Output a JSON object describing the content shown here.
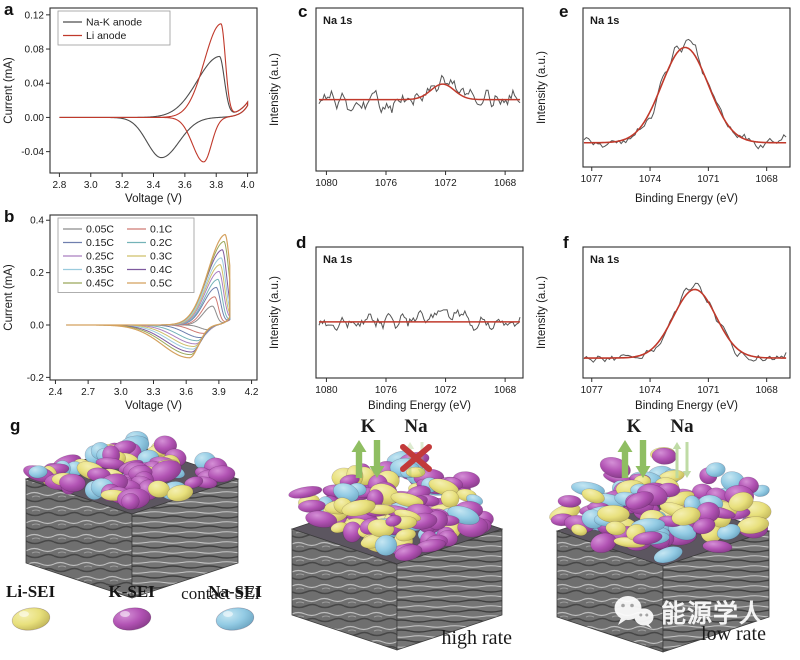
{
  "colors": {
    "raw_trace": "#4d4d4d",
    "fit_line": "#c0392b",
    "axis": "#2e2e2e"
  },
  "chart_data": [
    {
      "name": "cv-comparison-chart",
      "letter": "a",
      "type": "line",
      "xlabel": "Voltage (V)",
      "ylabel": "Current (mA)",
      "xlim": [
        2.74,
        4.06
      ],
      "ylim": [
        -0.065,
        0.128
      ],
      "xticks": [
        {
          "v": 2.8,
          "label": "2.8"
        },
        {
          "v": 3.0,
          "label": "3.0"
        },
        {
          "v": 3.2,
          "label": "3.2"
        },
        {
          "v": 3.4,
          "label": "3.4"
        },
        {
          "v": 3.6,
          "label": "3.6"
        },
        {
          "v": 3.8,
          "label": "3.8"
        },
        {
          "v": 4.0,
          "label": "4.0"
        }
      ],
      "yticks": [
        {
          "v": -0.04,
          "label": "-0.04"
        },
        {
          "v": 0,
          "label": "0.00"
        },
        {
          "v": 0.04,
          "label": "0.04"
        },
        {
          "v": 0.08,
          "label": "0.08"
        },
        {
          "v": 0.12,
          "label": "0.12"
        }
      ],
      "legend": {
        "cols": 1,
        "position": "top-left"
      },
      "series": [
        {
          "name": "Na-K anode",
          "color": "#4d4d4d",
          "width": 1.1,
          "summary": {
            "anodic_peak_V": 3.82,
            "anodic_peak_mA": 0.07,
            "cathodic_peak_V": 3.45,
            "cathodic_peak_mA": -0.047
          },
          "gen": {
            "kind": "cv",
            "vmin": 2.8,
            "vmax": 4.0,
            "vpa": 3.82,
            "apa": 0.07,
            "wl": 0.2,
            "wr": 0.045,
            "tail": 0.018,
            "vpc": 3.45,
            "apc": 0.047,
            "wcl": 0.13,
            "wcr": 0.16,
            "rtail": 0.014
          }
        },
        {
          "name": "Li anode",
          "color": "#c0392b",
          "width": 1.1,
          "summary": {
            "anodic_peak_V": 3.83,
            "anodic_peak_mA": 0.108,
            "cathodic_peak_V": 3.72,
            "cathodic_peak_mA": -0.052
          },
          "gen": {
            "kind": "cv",
            "vmin": 2.8,
            "vmax": 4.0,
            "vpa": 3.83,
            "apa": 0.108,
            "wl": 0.15,
            "wr": 0.04,
            "tail": 0.018,
            "vpc": 3.72,
            "apc": 0.052,
            "wcl": 0.1,
            "wcr": 0.07,
            "rtail": 0.014
          }
        }
      ]
    },
    {
      "name": "cv-rates-chart",
      "letter": "b",
      "type": "line",
      "xlabel": "Voltage (V)",
      "ylabel": "Current (mA)",
      "xlim": [
        2.35,
        4.25
      ],
      "ylim": [
        -0.21,
        0.42
      ],
      "xticks": [
        {
          "v": 2.4,
          "label": "2.4"
        },
        {
          "v": 2.7,
          "label": "2.7"
        },
        {
          "v": 3.0,
          "label": "3.0"
        },
        {
          "v": 3.3,
          "label": "3.3"
        },
        {
          "v": 3.6,
          "label": "3.6"
        },
        {
          "v": 3.9,
          "label": "3.9"
        },
        {
          "v": 4.2,
          "label": "4.2"
        }
      ],
      "yticks": [
        {
          "v": -0.2,
          "label": "-0.2"
        },
        {
          "v": 0,
          "label": "0.0"
        },
        {
          "v": 0.2,
          "label": "0.2"
        },
        {
          "v": 0.4,
          "label": "0.4"
        }
      ],
      "legend": {
        "cols": 2,
        "position": "top-left"
      },
      "series": [
        {
          "name": "0.05C",
          "color": "#8c8c8c",
          "width": 1,
          "gen": {
            "kind": "cv",
            "vmin": 2.5,
            "vmax": 4.0,
            "vpa": 3.84,
            "apa": 0.07,
            "wl": 0.12,
            "wr": 0.05,
            "tail": 0.02,
            "vpc": 3.8,
            "apc": 0.018,
            "wcl": 0.1,
            "wcr": 0.06,
            "rtail": 0.03
          }
        },
        {
          "name": "0.1C",
          "color": "#cf7b74",
          "width": 1,
          "gen": {
            "kind": "cv",
            "vmin": 2.5,
            "vmax": 4.0,
            "vpa": 3.86,
            "apa": 0.105,
            "wl": 0.14,
            "wr": 0.05,
            "tail": 0.02,
            "vpc": 3.76,
            "apc": 0.032,
            "wcl": 0.16,
            "wcr": 0.08,
            "rtail": 0.03
          }
        },
        {
          "name": "0.15C",
          "color": "#6f7fae",
          "width": 1,
          "gen": {
            "kind": "cv",
            "vmin": 2.5,
            "vmax": 4.0,
            "vpa": 3.875,
            "apa": 0.14,
            "wl": 0.16,
            "wr": 0.055,
            "tail": 0.02,
            "vpc": 3.73,
            "apc": 0.048,
            "wcl": 0.2,
            "wcr": 0.09,
            "rtail": 0.03
          }
        },
        {
          "name": "0.2C",
          "color": "#74b3b8",
          "width": 1,
          "gen": {
            "kind": "cv",
            "vmin": 2.5,
            "vmax": 4.0,
            "vpa": 3.89,
            "apa": 0.17,
            "wl": 0.17,
            "wr": 0.055,
            "tail": 0.02,
            "vpc": 3.7,
            "apc": 0.06,
            "wcl": 0.24,
            "wcr": 0.1,
            "rtail": 0.03
          }
        },
        {
          "name": "0.25C",
          "color": "#ab7fc0",
          "width": 1,
          "gen": {
            "kind": "cv",
            "vmin": 2.5,
            "vmax": 4.0,
            "vpa": 3.9,
            "apa": 0.2,
            "wl": 0.18,
            "wr": 0.06,
            "tail": 0.02,
            "vpc": 3.685,
            "apc": 0.072,
            "wcl": 0.27,
            "wcr": 0.11,
            "rtail": 0.03
          }
        },
        {
          "name": "0.3C",
          "color": "#cfc06a",
          "width": 1,
          "gen": {
            "kind": "cv",
            "vmin": 2.5,
            "vmax": 4.0,
            "vpa": 3.91,
            "apa": 0.225,
            "wl": 0.19,
            "wr": 0.06,
            "tail": 0.02,
            "vpc": 3.67,
            "apc": 0.082,
            "wcl": 0.29,
            "wcr": 0.11,
            "rtail": 0.03
          }
        },
        {
          "name": "0.35C",
          "color": "#9acbdd",
          "width": 1,
          "gen": {
            "kind": "cv",
            "vmin": 2.5,
            "vmax": 4.0,
            "vpa": 3.92,
            "apa": 0.25,
            "wl": 0.2,
            "wr": 0.06,
            "tail": 0.02,
            "vpc": 3.66,
            "apc": 0.092,
            "wcl": 0.31,
            "wcr": 0.12,
            "rtail": 0.03
          }
        },
        {
          "name": "0.4C",
          "color": "#7e5a9e",
          "width": 1,
          "gen": {
            "kind": "cv",
            "vmin": 2.5,
            "vmax": 4.0,
            "vpa": 3.93,
            "apa": 0.28,
            "wl": 0.21,
            "wr": 0.06,
            "tail": 0.02,
            "vpc": 3.65,
            "apc": 0.103,
            "wcl": 0.33,
            "wcr": 0.12,
            "rtail": 0.03
          }
        },
        {
          "name": "0.45C",
          "color": "#9aa85a",
          "width": 1,
          "gen": {
            "kind": "cv",
            "vmin": 2.5,
            "vmax": 4.0,
            "vpa": 3.945,
            "apa": 0.31,
            "wl": 0.215,
            "wr": 0.065,
            "tail": 0.02,
            "vpc": 3.64,
            "apc": 0.113,
            "wcl": 0.34,
            "wcr": 0.12,
            "rtail": 0.03
          }
        },
        {
          "name": "0.5C",
          "color": "#d4a15e",
          "width": 1.2,
          "gen": {
            "kind": "cv",
            "vmin": 2.5,
            "vmax": 4.0,
            "vpa": 3.955,
            "apa": 0.335,
            "wl": 0.22,
            "wr": 0.065,
            "tail": 0.02,
            "vpc": 3.63,
            "apc": 0.125,
            "wcl": 0.35,
            "wcr": 0.12,
            "rtail": 0.03
          }
        }
      ]
    },
    {
      "name": "xps-na1s-chart-c",
      "letter": "c",
      "type": "line",
      "inner_label": "Na 1s",
      "xlabel": "",
      "ylabel": "Intensity (a.u.)",
      "xlim": [
        1080.7,
        1066.8
      ],
      "ylim": [
        0,
        1.05
      ],
      "peak_center_eV": 1072,
      "xticks": [
        {
          "v": 1080,
          "label": "1080"
        },
        {
          "v": 1076,
          "label": "1076"
        },
        {
          "v": 1072,
          "label": "1072"
        },
        {
          "v": 1068,
          "label": "1068"
        }
      ],
      "yticks": [],
      "series": [
        {
          "name": "raw",
          "color": "#555555",
          "width": 1,
          "gen": {
            "kind": "xps",
            "x0": 1080.5,
            "x1": 1067.0,
            "baseline": 0.46,
            "height": 0.15,
            "center": 1072.1,
            "sigma": 0.9,
            "noise": 0.11,
            "seed": 101
          }
        },
        {
          "name": "fit",
          "color": "#c0392b",
          "width": 1.5,
          "gen": {
            "kind": "xps",
            "x0": 1080.5,
            "x1": 1067.0,
            "baseline": 0.46,
            "height": 0.1,
            "center": 1072.2,
            "sigma": 1.1,
            "noise": 0,
            "seed": 1
          }
        }
      ]
    },
    {
      "name": "xps-na1s-chart-d",
      "letter": "d",
      "type": "line",
      "inner_label": "Na 1s",
      "xlabel": "Binding Energy (eV)",
      "ylabel": "Intensity (a.u.)",
      "xlim": [
        1080.7,
        1066.8
      ],
      "ylim": [
        0,
        1.05
      ],
      "peak_center_eV": null,
      "xticks": [
        {
          "v": 1080,
          "label": "1080"
        },
        {
          "v": 1076,
          "label": "1076"
        },
        {
          "v": 1072,
          "label": "1072"
        },
        {
          "v": 1068,
          "label": "1068"
        }
      ],
      "yticks": [],
      "series": [
        {
          "name": "raw",
          "color": "#555555",
          "width": 1,
          "gen": {
            "kind": "xps",
            "x0": 1080.5,
            "x1": 1067.0,
            "baseline": 0.45,
            "height": 0.04,
            "center": 1071.8,
            "sigma": 1.2,
            "noise": 0.11,
            "seed": 202
          }
        },
        {
          "name": "fit",
          "color": "#c0392b",
          "width": 1.5,
          "gen": {
            "kind": "xps",
            "x0": 1080.5,
            "x1": 1067.0,
            "baseline": 0.45,
            "height": 0,
            "center": 1072,
            "sigma": 1,
            "noise": 0,
            "seed": 1
          }
        }
      ]
    },
    {
      "name": "xps-na1s-chart-e",
      "letter": "e",
      "type": "line",
      "inner_label": "Na 1s",
      "xlabel": "Binding Energy (eV)",
      "ylabel": "Intensity (a.u.)",
      "xlim": [
        1077.45,
        1066.8
      ],
      "ylim": [
        0,
        1.05
      ],
      "peak_center_eV": 1072.2,
      "xticks": [
        {
          "v": 1077,
          "label": "1077"
        },
        {
          "v": 1074,
          "label": "1074"
        },
        {
          "v": 1071,
          "label": "1071"
        },
        {
          "v": 1068,
          "label": "1068"
        }
      ],
      "yticks": [],
      "series": [
        {
          "name": "raw",
          "color": "#555555",
          "width": 1,
          "gen": {
            "kind": "xps",
            "x0": 1077.4,
            "x1": 1067.0,
            "baseline": 0.16,
            "height": 0.66,
            "center": 1072.2,
            "sigma": 1.6,
            "noise": 0.07,
            "seed": 303
          }
        },
        {
          "name": "fit",
          "color": "#c0392b",
          "width": 1.6,
          "gen": {
            "kind": "xps",
            "x0": 1077.4,
            "x1": 1067.0,
            "baseline": 0.16,
            "height": 0.63,
            "center": 1072.2,
            "sigma": 1.7,
            "noise": 0,
            "seed": 1
          }
        }
      ]
    },
    {
      "name": "xps-na1s-chart-f",
      "letter": "f",
      "type": "line",
      "inner_label": "Na 1s",
      "xlabel": "Binding Energy (eV)",
      "ylabel": "Intensity (a.u.)",
      "xlim": [
        1077.45,
        1066.8
      ],
      "ylim": [
        0,
        1.05
      ],
      "peak_center_eV": 1071.7,
      "xticks": [
        {
          "v": 1077,
          "label": "1077"
        },
        {
          "v": 1074,
          "label": "1074"
        },
        {
          "v": 1071,
          "label": "1071"
        },
        {
          "v": 1068,
          "label": "1068"
        }
      ],
      "yticks": [],
      "series": [
        {
          "name": "raw",
          "color": "#555555",
          "width": 1,
          "gen": {
            "kind": "xps",
            "x0": 1077.4,
            "x1": 1067.0,
            "baseline": 0.16,
            "height": 0.57,
            "center": 1071.7,
            "sigma": 1.45,
            "noise": 0.07,
            "seed": 404
          }
        },
        {
          "name": "fit",
          "color": "#c0392b",
          "width": 1.6,
          "gen": {
            "kind": "xps",
            "x0": 1077.4,
            "x1": 1067.0,
            "baseline": 0.16,
            "height": 0.55,
            "center": 1071.7,
            "sigma": 1.55,
            "noise": 0,
            "seed": 1
          }
        }
      ]
    }
  ],
  "panel_g": {
    "letter": "g",
    "arrow_labels": {
      "k": "K",
      "na": "Na"
    },
    "arrow_color": "#8fbe62",
    "blocked_color": "#c23a3a",
    "box_color": "#757575",
    "blob_colors": {
      "purple": "#b253b4",
      "yellow": "#e8e07c",
      "blue": "#93cbe4"
    },
    "diagrams": [
      {
        "caption": "contact SEI",
        "k_arrows": "none",
        "na_arrows": "none",
        "blob_mix": [
          0.5,
          0.25,
          0.25
        ],
        "thickness": 13,
        "count": 75,
        "seed": 11
      },
      {
        "caption": "high rate",
        "k_arrows": "solid",
        "na_arrows": "blocked",
        "blob_mix": [
          0.5,
          0.33,
          0.17
        ],
        "thickness": 42,
        "count": 135,
        "seed": 23
      },
      {
        "caption": "low rate",
        "k_arrows": "solid",
        "na_arrows": "hollow",
        "blob_mix": [
          0.37,
          0.29,
          0.34
        ],
        "thickness": 46,
        "count": 140,
        "seed": 37
      }
    ],
    "legend": [
      {
        "label": "Li-SEI",
        "color": "#e8e07c"
      },
      {
        "label": "K-SEI",
        "color": "#b253b4"
      },
      {
        "label": "Na-SEI",
        "color": "#93cbe4"
      }
    ]
  },
  "watermark": {
    "text": "能源学人",
    "icon": "wechat-icon"
  }
}
